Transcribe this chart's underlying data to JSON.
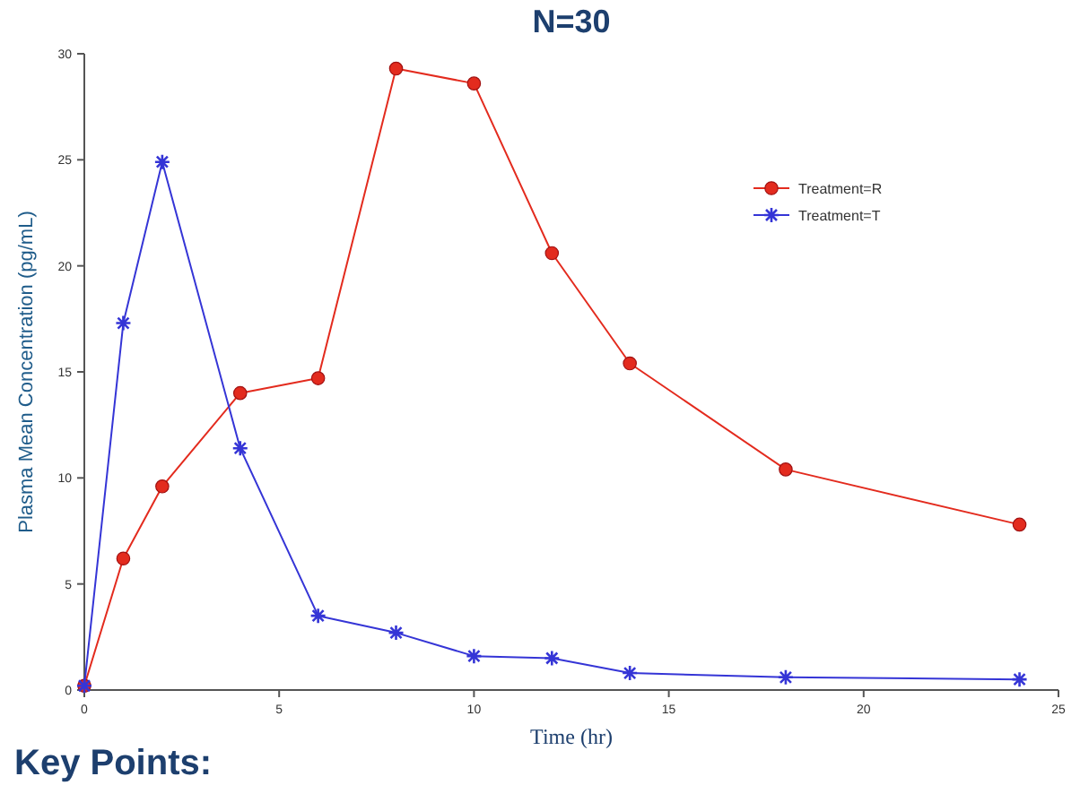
{
  "chart_data": {
    "type": "line",
    "title": "N=30",
    "xlabel": "Time (hr)",
    "ylabel": "Plasma Mean Concentration (pg/mL)",
    "annotations": [
      "Key Points:"
    ],
    "x": [
      0,
      1,
      2,
      4,
      6,
      8,
      10,
      12,
      14,
      18,
      24
    ],
    "series": [
      {
        "name": "Treatment=R",
        "color": "#e32b1e",
        "marker": "circle",
        "values": [
          0.2,
          6.2,
          9.6,
          14.0,
          14.7,
          29.3,
          28.6,
          20.6,
          15.4,
          10.4,
          7.8
        ]
      },
      {
        "name": "Treatment=T",
        "color": "#3535d6",
        "marker": "cross",
        "values": [
          0.2,
          17.3,
          24.9,
          11.4,
          3.5,
          2.7,
          1.6,
          1.5,
          0.8,
          0.6,
          0.5
        ]
      }
    ],
    "xlim": [
      0,
      25
    ],
    "xticks": [
      0,
      5,
      10,
      15,
      20,
      25
    ],
    "ylim": [
      0,
      30
    ],
    "yticks": [
      0,
      5,
      10,
      15,
      20,
      25,
      30
    ],
    "grid": false,
    "legend": "top right",
    "line_style": "solid"
  }
}
